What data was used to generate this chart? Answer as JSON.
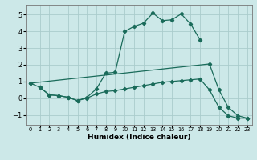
{
  "xlabel": "Humidex (Indice chaleur)",
  "background_color": "#cce8e8",
  "line_color": "#1a6b5a",
  "grid_color": "#aacccc",
  "xlim": [
    -0.5,
    23.5
  ],
  "ylim": [
    -1.6,
    5.6
  ],
  "xticks": [
    0,
    1,
    2,
    3,
    4,
    5,
    6,
    7,
    8,
    9,
    10,
    11,
    12,
    13,
    14,
    15,
    16,
    17,
    18,
    19,
    20,
    21,
    22,
    23
  ],
  "yticks": [
    -1,
    0,
    1,
    2,
    3,
    4,
    5
  ],
  "line1_x": [
    0,
    1,
    2,
    3,
    4,
    5,
    6,
    7,
    8,
    9,
    10,
    11,
    12,
    13,
    14,
    15,
    16,
    17,
    18
  ],
  "line1_y": [
    0.9,
    0.65,
    0.2,
    0.15,
    0.05,
    -0.15,
    0.05,
    0.55,
    1.5,
    1.55,
    4.0,
    4.3,
    4.5,
    5.1,
    4.65,
    4.7,
    5.05,
    4.45,
    3.5
  ],
  "line2_x": [
    0,
    19,
    20,
    21,
    22,
    23
  ],
  "line2_y": [
    0.9,
    2.05,
    0.5,
    -0.55,
    -1.05,
    -1.2
  ],
  "line3_x": [
    1,
    2,
    3,
    4,
    5,
    6,
    7,
    8,
    9,
    10,
    11,
    12,
    13,
    14,
    15,
    16,
    17,
    18,
    19,
    20,
    21,
    22,
    23
  ],
  "line3_y": [
    0.65,
    0.2,
    0.15,
    0.05,
    -0.15,
    0.0,
    0.25,
    0.4,
    0.45,
    0.55,
    0.65,
    0.75,
    0.85,
    0.95,
    1.0,
    1.05,
    1.1,
    1.15,
    0.5,
    -0.55,
    -1.05,
    -1.2,
    -1.2
  ]
}
